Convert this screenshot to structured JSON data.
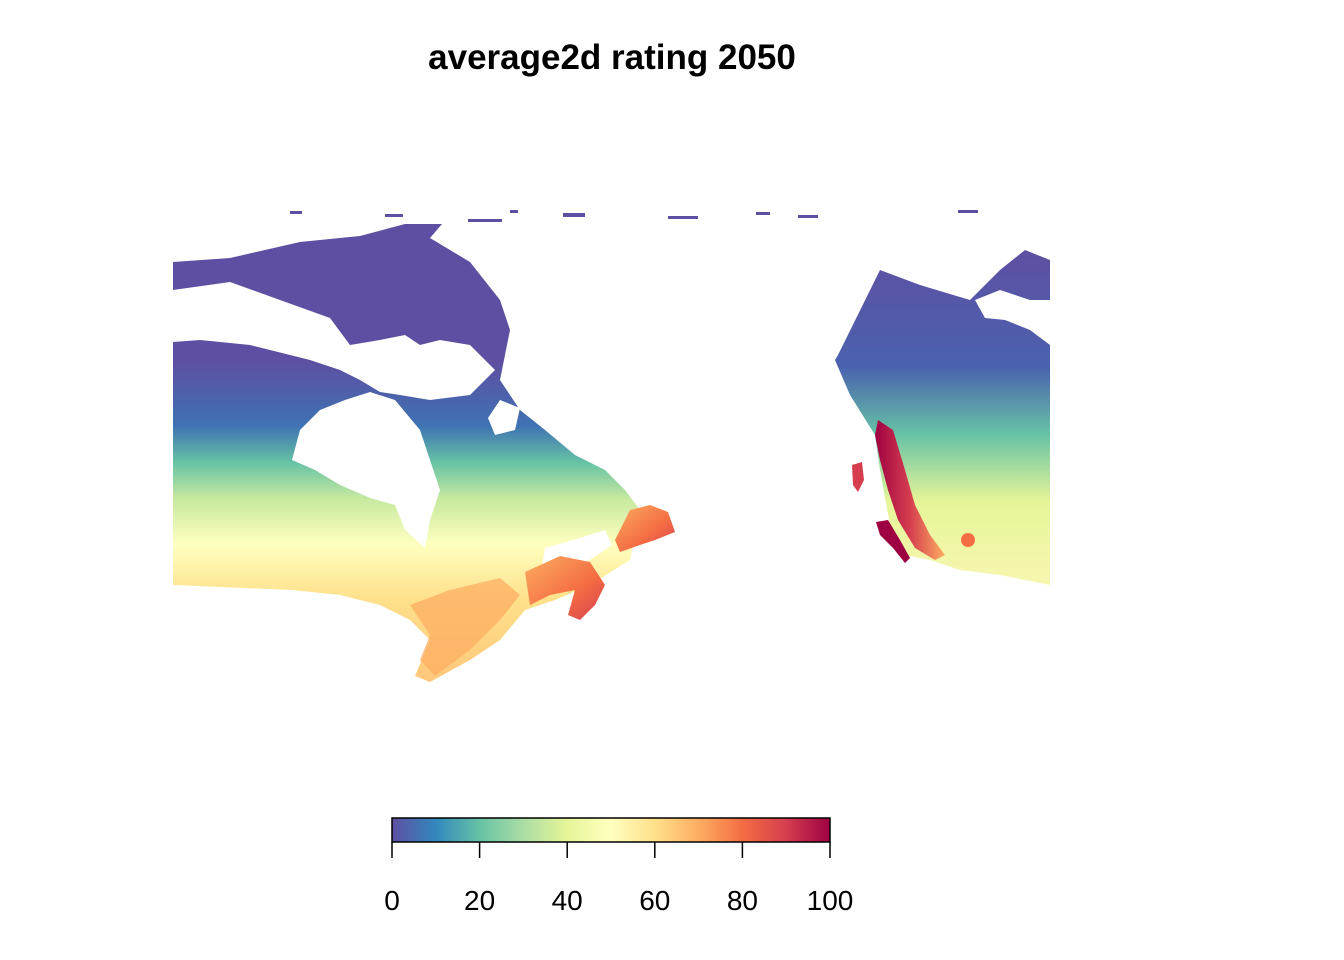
{
  "title": "average2d rating 2050",
  "legend": {
    "min": 0,
    "max": 100,
    "ticks": [
      "0",
      "20",
      "40",
      "60",
      "80",
      "100"
    ],
    "palette": [
      "#5E4FA2",
      "#3288BD",
      "#66C2A5",
      "#ABDDA4",
      "#E6F598",
      "#FFFFBF",
      "#FEE08B",
      "#FDAE61",
      "#F46D43",
      "#D53E4F",
      "#9E0142"
    ]
  },
  "colors": {
    "arctic": "#5E4FA2",
    "north": "#3E72B3",
    "subarctic": "#66C2A5",
    "mid": "#E6F598",
    "south": "#FEE08B",
    "warm": "#F46D43",
    "hot": "#9E0142"
  }
}
